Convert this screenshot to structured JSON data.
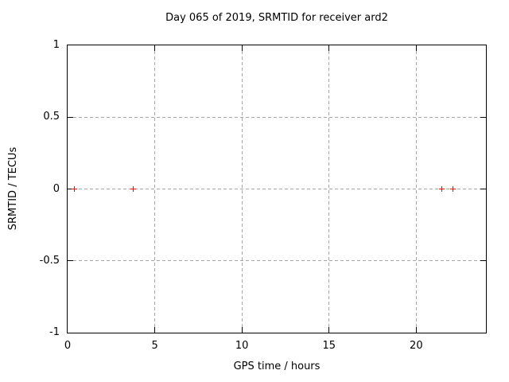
{
  "chart_data": {
    "type": "scatter",
    "title": "Day 065 of 2019, SRMTID for receiver ard2",
    "xlabel": "GPS time / hours",
    "ylabel": "SRMTID / TECUs",
    "xlim": [
      0,
      24
    ],
    "ylim": [
      -1,
      1
    ],
    "xticks": [
      {
        "value": 0,
        "label": "0"
      },
      {
        "value": 5,
        "label": "5"
      },
      {
        "value": 10,
        "label": "10"
      },
      {
        "value": 15,
        "label": "15"
      },
      {
        "value": 20,
        "label": "20"
      }
    ],
    "yticks": [
      {
        "value": -1,
        "label": "-1"
      },
      {
        "value": -0.5,
        "label": "-0.5"
      },
      {
        "value": 0,
        "label": "0"
      },
      {
        "value": 0.5,
        "label": "0.5"
      },
      {
        "value": 1,
        "label": "1"
      }
    ],
    "grid": true,
    "legend": false,
    "series": [
      {
        "name": "SRMTID",
        "marker": "plus",
        "color": "#ff0000",
        "points": [
          {
            "x": 0.4,
            "y": 0
          },
          {
            "x": 3.75,
            "y": 0
          },
          {
            "x": 21.45,
            "y": 0
          },
          {
            "x": 22.1,
            "y": 0
          }
        ]
      }
    ],
    "colors": {
      "background": "#ffffff",
      "axis": "#000000",
      "grid": "#a6a6a6",
      "marker": "#ff0000"
    }
  }
}
